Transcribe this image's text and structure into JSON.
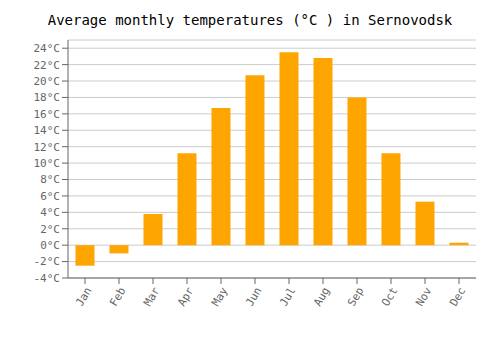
{
  "chart_data": {
    "type": "bar",
    "title": "Average monthly temperatures (°C ) in Sernovodsk",
    "categories": [
      "Jan",
      "Feb",
      "Mar",
      "Apr",
      "May",
      "Jun",
      "Jul",
      "Aug",
      "Sep",
      "Oct",
      "Nov",
      "Dec"
    ],
    "values": [
      -2.5,
      -1.0,
      3.8,
      11.2,
      16.7,
      20.7,
      23.5,
      22.8,
      18.0,
      11.2,
      5.3,
      0.3
    ],
    "color": "#FFA500",
    "ylim": [
      -4,
      25
    ],
    "yticks": [
      {
        "value": -4,
        "label": "-4°C"
      },
      {
        "value": -2,
        "label": "-2°C"
      },
      {
        "value": 0,
        "label": "0°C"
      },
      {
        "value": 2,
        "label": "2°C"
      },
      {
        "value": 4,
        "label": "4°C"
      },
      {
        "value": 6,
        "label": "6°C"
      },
      {
        "value": 8,
        "label": "8°C"
      },
      {
        "value": 10,
        "label": "10°C"
      },
      {
        "value": 12,
        "label": "12°C"
      },
      {
        "value": 14,
        "label": "14°C"
      },
      {
        "value": 16,
        "label": "16°C"
      },
      {
        "value": 18,
        "label": "18°C"
      },
      {
        "value": 20,
        "label": "20°C"
      },
      {
        "value": 22,
        "label": "22°C"
      },
      {
        "value": 24,
        "label": "24°C"
      }
    ],
    "grid": true
  }
}
